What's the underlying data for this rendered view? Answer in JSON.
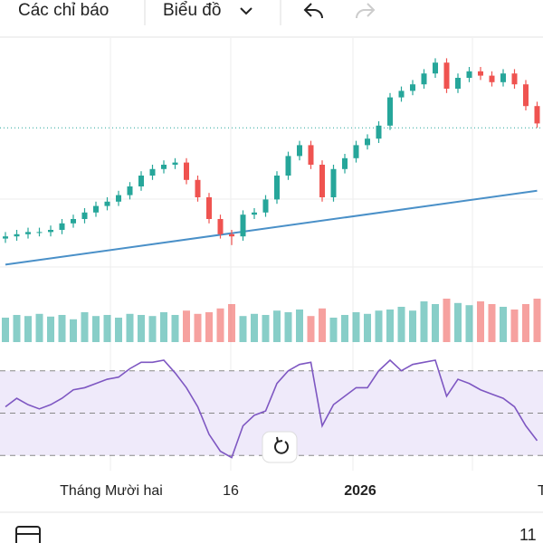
{
  "toolbar": {
    "indicators": "Các chỉ báo",
    "chart_type": "Biểu đồ"
  },
  "time_axis": {
    "labels": [
      "Tháng Mười hai",
      "16",
      "2026",
      "T"
    ]
  },
  "footer": {
    "right_text": "11"
  },
  "chart_data": {
    "type": "candlestick",
    "ylim": [
      0,
      100
    ],
    "open": [
      11,
      12,
      13,
      14,
      14,
      15,
      18,
      20,
      23,
      26,
      28,
      31,
      35,
      40,
      43,
      45,
      46,
      38,
      30,
      20,
      13,
      12,
      22,
      23,
      29,
      40,
      49,
      54,
      45,
      30,
      43,
      48,
      54,
      57,
      63,
      76,
      79,
      82,
      87,
      92,
      80,
      85,
      88,
      86,
      83,
      87,
      82,
      72
    ],
    "high": [
      14,
      15,
      16,
      16,
      17,
      20,
      22,
      25,
      28,
      30,
      33,
      37,
      42,
      45,
      47,
      48,
      48,
      40,
      32,
      22,
      15,
      24,
      25,
      31,
      42,
      51,
      56,
      56,
      47,
      45,
      50,
      56,
      59,
      65,
      78,
      81,
      84,
      89,
      94,
      94,
      87,
      90,
      90,
      88,
      89,
      89,
      84,
      74
    ],
    "low": [
      9,
      10,
      11,
      12,
      12,
      13,
      16,
      18,
      21,
      24,
      26,
      29,
      33,
      38,
      41,
      43,
      36,
      28,
      18,
      11,
      8,
      10,
      20,
      21,
      27,
      38,
      47,
      43,
      28,
      28,
      41,
      46,
      52,
      55,
      61,
      74,
      77,
      80,
      85,
      78,
      78,
      83,
      84,
      81,
      81,
      80,
      70,
      62
    ],
    "close": [
      12,
      13,
      14,
      14,
      15,
      18,
      20,
      23,
      26,
      28,
      31,
      35,
      40,
      43,
      45,
      46,
      38,
      30,
      20,
      13,
      12,
      22,
      23,
      29,
      40,
      49,
      54,
      45,
      30,
      43,
      48,
      54,
      57,
      63,
      76,
      79,
      82,
      87,
      92,
      80,
      85,
      88,
      86,
      83,
      87,
      82,
      72,
      64
    ],
    "up_color": "#26a69a",
    "down_color": "#ef5350",
    "reference_line": 62,
    "moving_average": {
      "color": "#4a90c8",
      "x": [
        0,
        47
      ],
      "values": [
        -1,
        33
      ]
    },
    "volume": {
      "ylim": [
        0,
        100
      ],
      "values": [
        45,
        50,
        48,
        52,
        47,
        50,
        42,
        55,
        48,
        50,
        45,
        52,
        50,
        48,
        55,
        50,
        58,
        52,
        55,
        62,
        70,
        48,
        52,
        50,
        58,
        55,
        60,
        48,
        62,
        45,
        50,
        55,
        52,
        58,
        60,
        65,
        58,
        75,
        70,
        80,
        72,
        68,
        75,
        70,
        65,
        60,
        70,
        80
      ]
    },
    "rsi": {
      "color": "#7e57c2",
      "ylim": [
        25,
        75
      ],
      "levels": [
        30,
        50,
        70
      ],
      "values": [
        53,
        57,
        54,
        52,
        54,
        57,
        61,
        62,
        64,
        66,
        67,
        71,
        74,
        74,
        75,
        69,
        62,
        53,
        40,
        32,
        29,
        44,
        49,
        51,
        64,
        70,
        73,
        74,
        44,
        54,
        58,
        62,
        62,
        70,
        75,
        70,
        73,
        74,
        75,
        58,
        66,
        64,
        61,
        59,
        57,
        53,
        44,
        37
      ]
    }
  }
}
